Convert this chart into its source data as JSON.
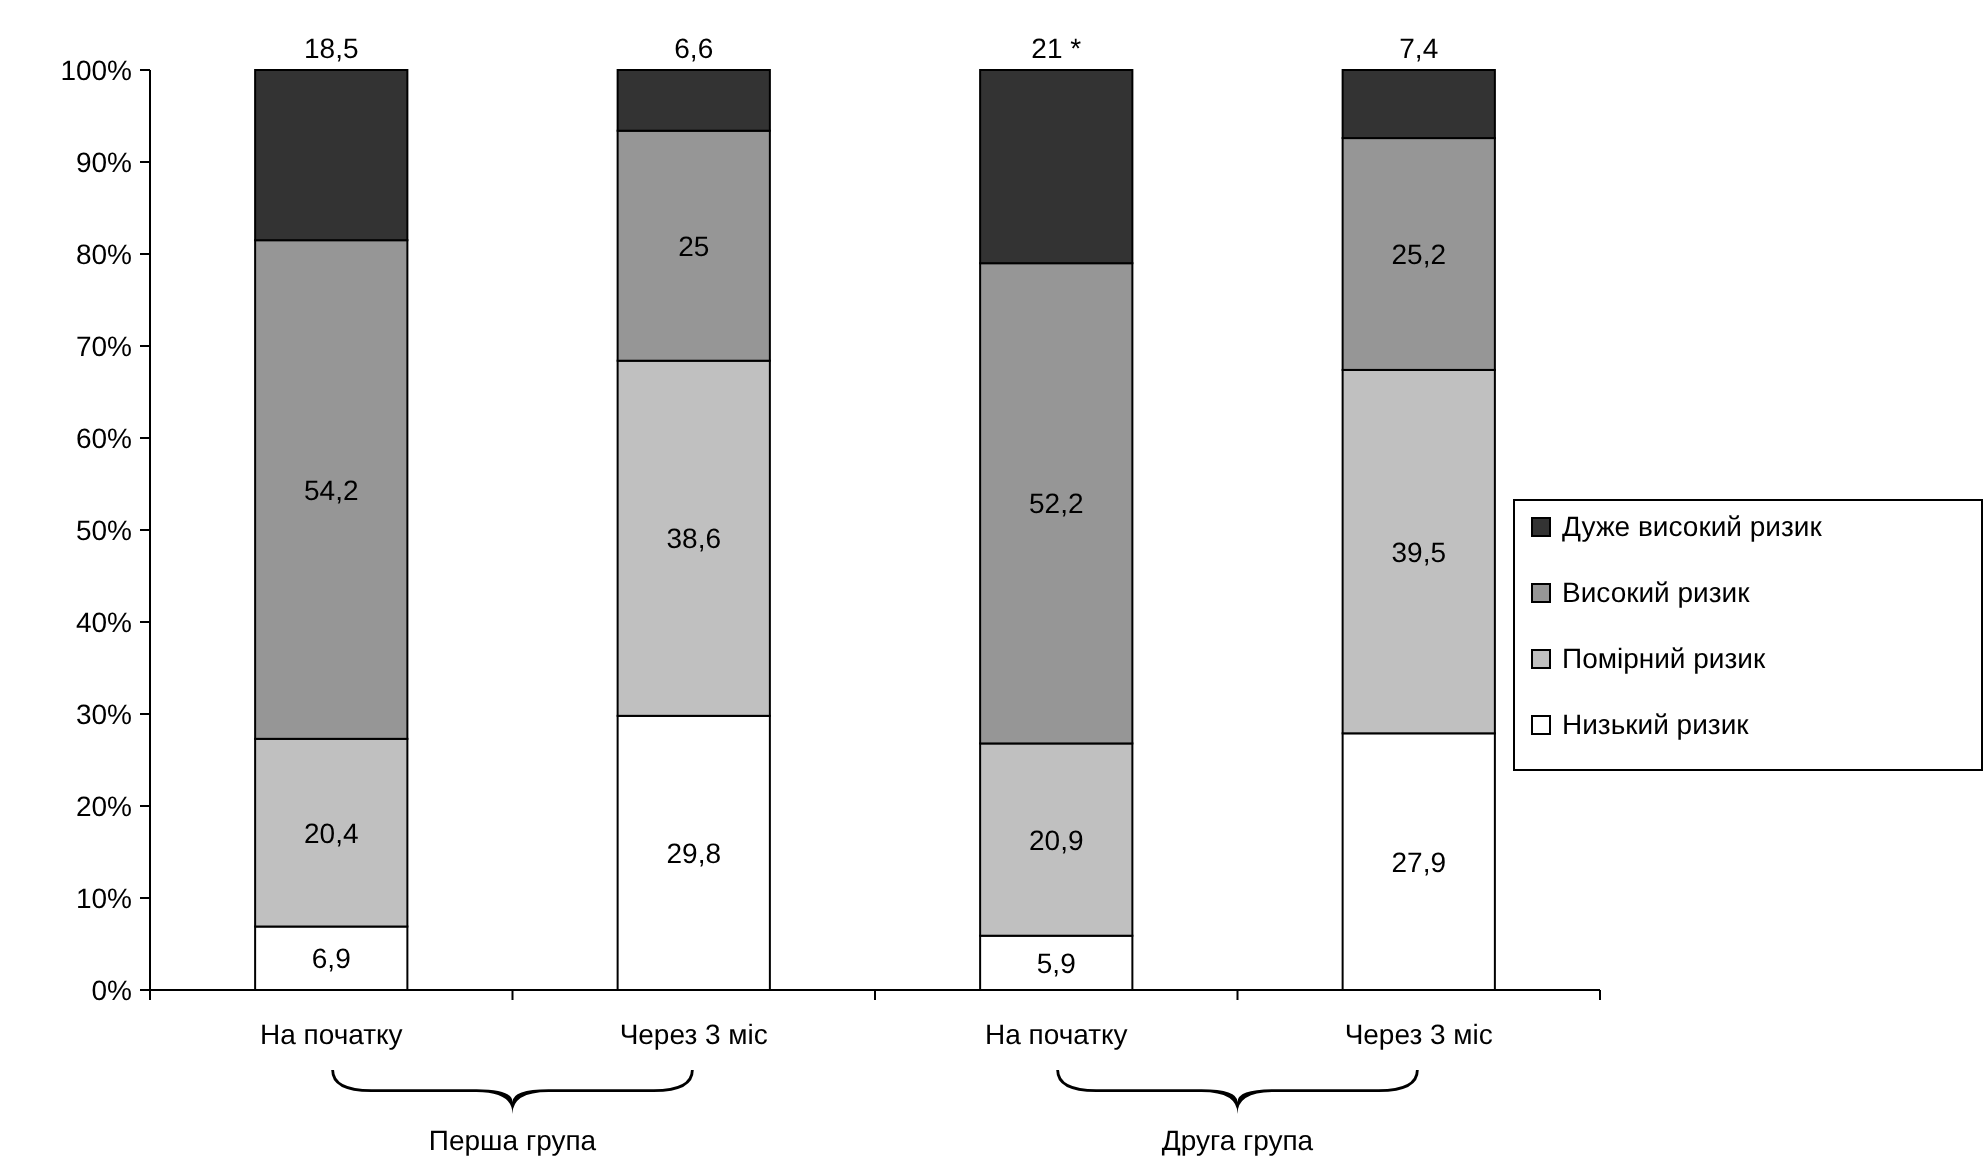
{
  "chart_data": {
    "type": "bar",
    "stacked": true,
    "categories": [
      "На початку",
      "Через 3 міс",
      "На початку",
      "Через 3 міс"
    ],
    "series": [
      {
        "name": "Низький ризик",
        "color": "#ffffff",
        "values": [
          6.9,
          29.8,
          5.9,
          27.9
        ],
        "value_labels": [
          "6,9",
          "29,8",
          "5,9",
          "27,9"
        ]
      },
      {
        "name": "Помірний ризик",
        "color": "#c0c0c0",
        "values": [
          20.4,
          38.6,
          20.9,
          39.5
        ],
        "value_labels": [
          "20,4",
          "38,6",
          "20,9",
          "39,5"
        ]
      },
      {
        "name": "Високий ризик",
        "color": "#969696",
        "values": [
          54.2,
          25,
          52.2,
          25.2
        ],
        "value_labels": [
          "54,2",
          "25",
          "52,2",
          "25,2"
        ]
      },
      {
        "name": "Дуже високий ризик",
        "color": "#333333",
        "values": [
          18.5,
          6.6,
          21,
          7.4
        ],
        "value_labels": [
          "18,5",
          "6,6",
          "21 *",
          "7,4"
        ]
      }
    ],
    "ylim": [
      0,
      100
    ],
    "yticks": [
      {
        "value": 0,
        "label": "0%"
      },
      {
        "value": 10,
        "label": "10%"
      },
      {
        "value": 20,
        "label": "20%"
      },
      {
        "value": 30,
        "label": "30%"
      },
      {
        "value": 40,
        "label": "40%"
      },
      {
        "value": 50,
        "label": "50%"
      },
      {
        "value": 60,
        "label": "60%"
      },
      {
        "value": 70,
        "label": "70%"
      },
      {
        "value": 80,
        "label": "80%"
      },
      {
        "value": 90,
        "label": "90%"
      },
      {
        "value": 100,
        "label": "100%"
      }
    ],
    "grid": false,
    "legend": "right",
    "annotations": [
      "Перша група",
      "Друга група"
    ]
  }
}
